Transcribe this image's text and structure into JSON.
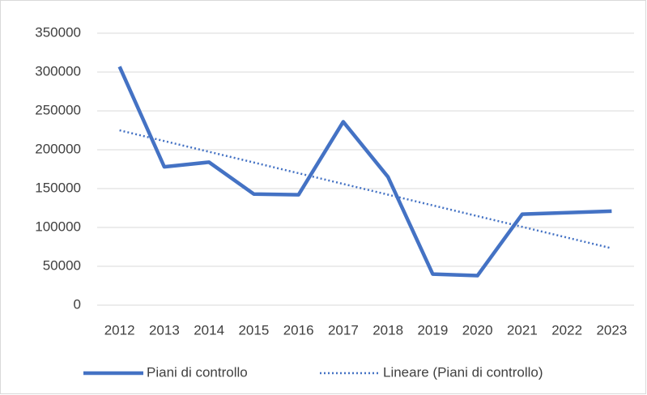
{
  "chart_data": {
    "type": "line",
    "categories": [
      "2012",
      "2013",
      "2014",
      "2015",
      "2016",
      "2017",
      "2018",
      "2019",
      "2020",
      "2021",
      "2022",
      "2023"
    ],
    "series": [
      {
        "name": "Piani di controllo",
        "color": "#4472c4",
        "style": "solid",
        "values": [
          307000,
          178000,
          184000,
          143000,
          142000,
          236000,
          165000,
          40000,
          38000,
          117000,
          119000,
          121000
        ]
      },
      {
        "name": "Lineare (Piani di controllo)",
        "color": "#4472c4",
        "style": "dotted",
        "values": [
          225000,
          211200,
          197400,
          183600,
          169800,
          156000,
          142200,
          128400,
          114600,
          100800,
          87000,
          73200
        ]
      }
    ],
    "ylim": [
      0,
      350000
    ],
    "yticks": [
      0,
      50000,
      100000,
      150000,
      200000,
      250000,
      300000,
      350000
    ],
    "grid": true,
    "legend": "bottom"
  }
}
